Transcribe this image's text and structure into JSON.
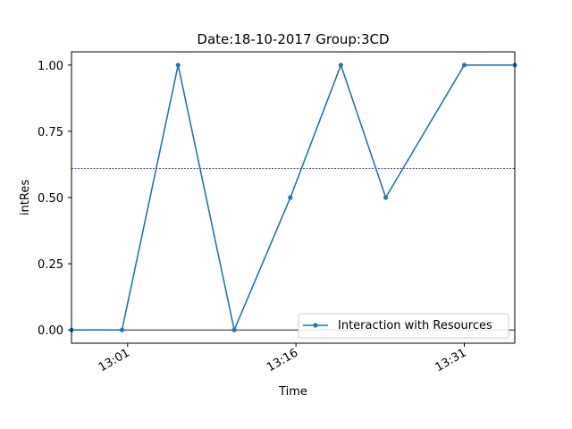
{
  "chart_data": {
    "type": "line",
    "title": "Date:18-10-2017  Group:3CD",
    "xlabel": "Time",
    "ylabel": "intRes",
    "x_ticks": [
      "13:01",
      "13:16",
      "13:31"
    ],
    "y_ticks": [
      "0.00",
      "0.25",
      "0.50",
      "0.75",
      "1.00"
    ],
    "ylim": [
      -0.05,
      1.05
    ],
    "xlim": [
      "12:56",
      "13:35.5"
    ],
    "grid": false,
    "legend_position": "lower-right",
    "reference_line": 0.61,
    "zero_line": 0.0,
    "series": [
      {
        "name": "Interaction with Resources",
        "color": "#1f77b4",
        "x": [
          "12:56",
          "13:00.5",
          "13:05.5",
          "13:10.5",
          "13:15.5",
          "13:20",
          "13:24",
          "13:31",
          "13:35.5"
        ],
        "y": [
          0.0,
          0.0,
          1.0,
          0.0,
          0.5,
          1.0,
          0.5,
          1.0,
          1.0
        ]
      }
    ]
  }
}
